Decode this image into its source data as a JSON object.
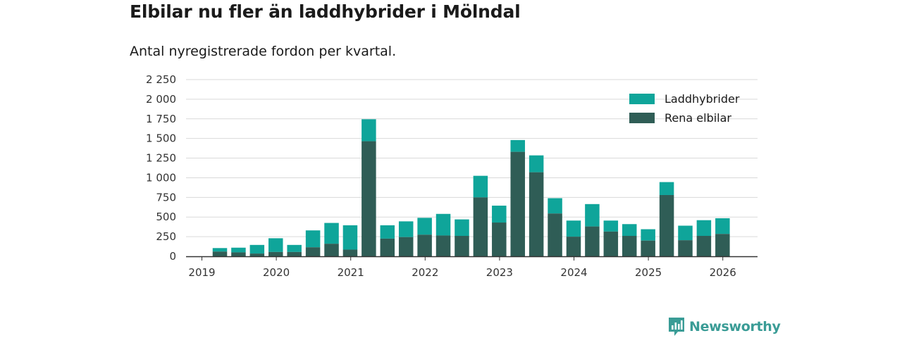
{
  "title": "Elbilar nu fler än laddhybrider i Mölndal",
  "subtitle": "Antal nyregistrerade fordon per kvartal.",
  "brand": "Newsworthy",
  "colors": {
    "phev": "#0fa59a",
    "bev": "#2f5d56",
    "grid": "#d9d9d9",
    "axis": "#333333"
  },
  "chart_data": {
    "type": "bar",
    "stacked": true,
    "ylim": [
      0,
      2250
    ],
    "yticks": [
      0,
      250,
      500,
      750,
      1000,
      1250,
      1500,
      1750,
      2000,
      2250
    ],
    "ytick_labels": [
      "0",
      "250",
      "500",
      "750",
      "1 000",
      "1 250",
      "1 500",
      "1 750",
      "2 000",
      "2 250"
    ],
    "xticks": [
      "2019",
      "2020",
      "2021",
      "2022",
      "2023",
      "2024",
      "2025",
      "2026"
    ],
    "legend_position": "top-right",
    "categories": [
      "2019 Q2",
      "2019 Q3",
      "2019 Q4",
      "2020 Q1",
      "2020 Q2",
      "2020 Q3",
      "2020 Q4",
      "2021 Q1",
      "2021 Q2",
      "2021 Q3",
      "2021 Q4",
      "2022 Q1",
      "2022 Q2",
      "2022 Q3",
      "2022 Q4",
      "2023 Q1",
      "2023 Q2",
      "2023 Q3",
      "2023 Q4",
      "2024 Q1",
      "2024 Q2",
      "2024 Q3",
      "2024 Q4",
      "2025 Q1",
      "2025 Q2",
      "2025 Q3",
      "2025 Q4",
      "2026 Q1"
    ],
    "series": [
      {
        "name": "Rena elbilar",
        "values": [
          60,
          50,
          35,
          55,
          55,
          115,
          160,
          85,
          1465,
          225,
          245,
          275,
          265,
          260,
          750,
          430,
          1330,
          1070,
          545,
          250,
          380,
          315,
          260,
          200,
          780,
          205,
          260,
          285
        ]
      },
      {
        "name": "Laddhybrider",
        "values": [
          45,
          60,
          110,
          175,
          90,
          215,
          265,
          310,
          280,
          170,
          200,
          215,
          275,
          210,
          275,
          215,
          150,
          215,
          195,
          205,
          285,
          140,
          150,
          145,
          165,
          185,
          200,
          200
        ]
      }
    ],
    "legend": [
      "Laddhybrider",
      "Rena elbilar"
    ]
  }
}
